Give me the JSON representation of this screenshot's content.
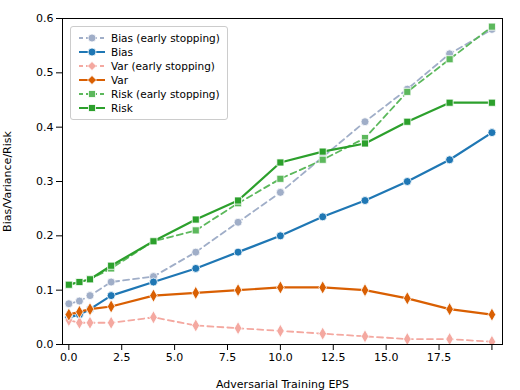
{
  "chart_data": {
    "type": "line",
    "xlabel": "Adversarial Training EPS",
    "ylabel": "Bias/Variance/Risk",
    "x": [
      0,
      0.5,
      1,
      2,
      4,
      6,
      8,
      10,
      12,
      14,
      16,
      18,
      20
    ],
    "series": [
      {
        "name": "Bias (early stopping)",
        "color": "#a0aec8",
        "marker": "circle",
        "line_style": "dashed",
        "values": [
          0.075,
          0.08,
          0.09,
          0.115,
          0.125,
          0.17,
          0.225,
          0.28,
          0.345,
          0.41,
          0.47,
          0.535,
          0.58
        ]
      },
      {
        "name": "Bias",
        "color": "#1f77b4",
        "marker": "circle",
        "line_style": "solid",
        "values": [
          0.05,
          0.055,
          0.065,
          0.09,
          0.115,
          0.14,
          0.17,
          0.2,
          0.235,
          0.265,
          0.3,
          0.34,
          0.39
        ]
      },
      {
        "name": "Var (early stopping)",
        "color": "#f4a8a0",
        "marker": "diamond",
        "line_style": "dashed",
        "values": [
          0.045,
          0.04,
          0.04,
          0.04,
          0.05,
          0.035,
          0.03,
          0.025,
          0.02,
          0.015,
          0.01,
          0.01,
          0.005
        ]
      },
      {
        "name": "Var",
        "color": "#d95f02",
        "marker": "diamond",
        "line_style": "solid",
        "values": [
          0.055,
          0.06,
          0.065,
          0.07,
          0.09,
          0.095,
          0.1,
          0.105,
          0.105,
          0.1,
          0.085,
          0.065,
          0.055
        ]
      },
      {
        "name": "Risk (early stopping)",
        "color": "#5cb85c",
        "marker": "square",
        "line_style": "dashed",
        "values": [
          0.11,
          0.115,
          0.12,
          0.14,
          0.19,
          0.21,
          0.26,
          0.305,
          0.34,
          0.38,
          0.465,
          0.525,
          0.585
        ]
      },
      {
        "name": "Risk",
        "color": "#2ca02c",
        "marker": "square",
        "line_style": "solid",
        "values": [
          0.11,
          0.115,
          0.12,
          0.145,
          0.19,
          0.23,
          0.265,
          0.335,
          0.355,
          0.37,
          0.41,
          0.445,
          0.445
        ]
      }
    ],
    "xlim": [
      -0.3,
      20.5
    ],
    "xticks": [
      {
        "value": 0.0,
        "label": "0.0"
      },
      2.5,
      {
        "value": 5.0,
        "label": "5.0"
      },
      7.5,
      {
        "value": 10.0,
        "label": "10.0"
      },
      12.5,
      {
        "value": 15.0,
        "label": "15.0"
      },
      17.5,
      {
        "value": 20.0,
        "label": null
      }
    ],
    "ylim": [
      0.0,
      0.6
    ],
    "yticks": [
      {
        "value": 0.0,
        "label": "0.0"
      },
      0.1,
      0.2,
      0.3,
      0.4,
      0.5,
      0.6
    ],
    "legend": "upper left",
    "grid": false
  }
}
